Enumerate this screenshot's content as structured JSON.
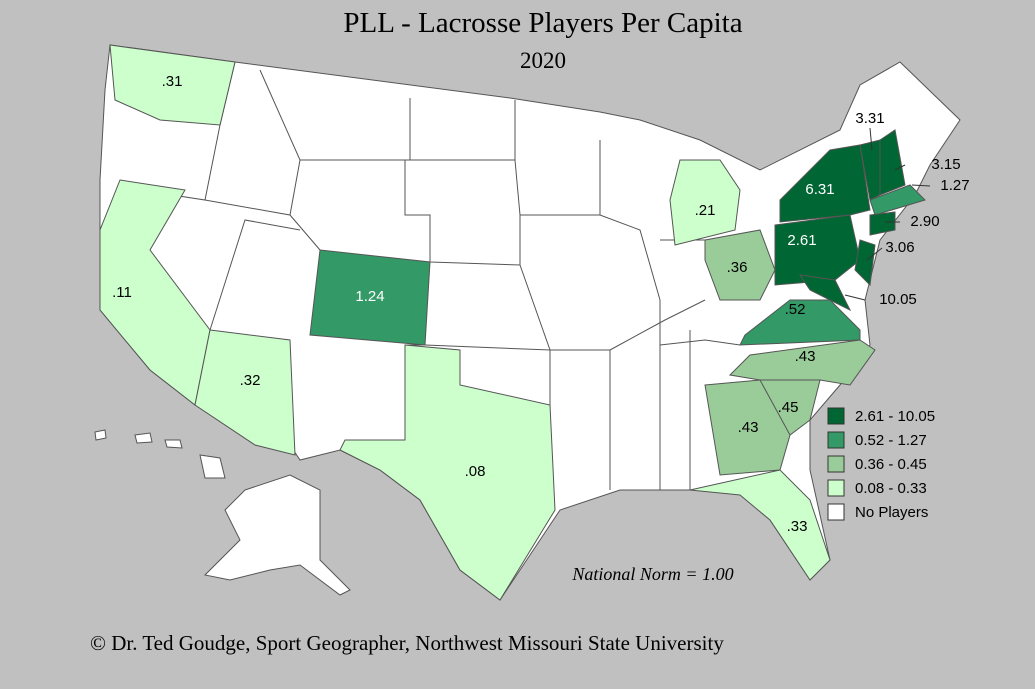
{
  "title": "PLL - Lacrosse Players Per Capita",
  "subtitle": "2020",
  "states": [
    {
      "label": ".31",
      "color": "#ccffcc"
    },
    {
      "label": ".11",
      "color": "#ccffcc"
    },
    {
      "label": ".32",
      "color": "#ccffcc"
    },
    {
      "label": "1.24",
      "color": "#339966"
    },
    {
      "label": ".08",
      "color": "#ccffcc"
    },
    {
      "label": ".21",
      "color": "#ccffcc"
    },
    {
      "label": ".36",
      "color": "#99cc99"
    },
    {
      "label": ".52",
      "color": "#339966"
    },
    {
      "label": ".43",
      "color": "#99cc99"
    },
    {
      "label": ".45",
      "color": "#99cc99"
    },
    {
      "label": ".43",
      "color": "#99cc99"
    },
    {
      "label": ".33",
      "color": "#ccffcc"
    },
    {
      "label": "2.61",
      "color": "#006633"
    },
    {
      "label": "6.31",
      "color": "#006633"
    },
    {
      "label": "3.31",
      "color": "#006633"
    },
    {
      "label": "3.15",
      "color": "#006633"
    },
    {
      "label": "1.27",
      "color": "#339966"
    },
    {
      "label": "2.90",
      "color": "#006633"
    },
    {
      "label": "3.06",
      "color": "#006633"
    },
    {
      "label": "10.05",
      "color": "#006633"
    }
  ],
  "legend": [
    {
      "label": "2.61 - 10.05",
      "color": "#006633"
    },
    {
      "label": "0.52 - 1.27",
      "color": "#339966"
    },
    {
      "label": "0.36 - 0.45",
      "color": "#99cc99"
    },
    {
      "label": "0.08 - 0.33",
      "color": "#ccffcc"
    },
    {
      "label": "No Players",
      "color": "#ffffff"
    }
  ],
  "note": "National Norm = 1.00",
  "credit": "© Dr. Ted Goudge, Sport Geographer, Northwest Missouri State University"
}
